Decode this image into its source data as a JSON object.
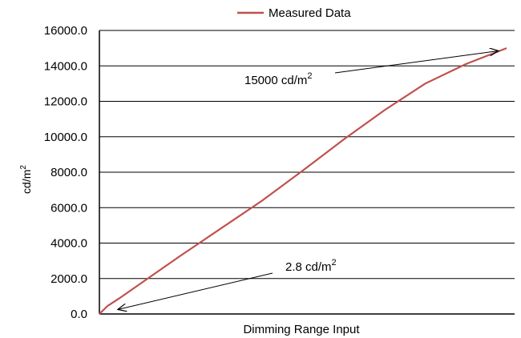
{
  "chart_data": {
    "type": "line",
    "title": "",
    "xlabel": "Dimming Range Input",
    "ylabel": "cd/m",
    "ylabel_sup": "2",
    "ylim": [
      0,
      16000
    ],
    "xlim": [
      0,
      1
    ],
    "yticks": [
      "0.0",
      "2000.0",
      "4000.0",
      "6000.0",
      "8000.0",
      "10000.0",
      "12000.0",
      "14000.0",
      "16000.0"
    ],
    "grid": true,
    "legend": {
      "position": "top-center"
    },
    "series": [
      {
        "name": "Measured Data",
        "color": "#c0504d",
        "x": [
          0,
          0.02,
          0.05,
          0.1,
          0.2,
          0.3,
          0.4,
          0.5,
          0.6,
          0.7,
          0.8,
          0.9,
          1.0
        ],
        "y": [
          2.8,
          450,
          900,
          1700,
          3300,
          4850,
          6400,
          8100,
          9850,
          11500,
          13000,
          14100,
          15000
        ]
      }
    ],
    "annotations": [
      {
        "text": "15000 cd/m",
        "sup": "2",
        "points_to": {
          "x": 0.98,
          "y": 14850
        }
      },
      {
        "text": "2.8 cd/m",
        "sup": "2",
        "points_to": {
          "x": 0.045,
          "y": 250
        }
      }
    ]
  }
}
